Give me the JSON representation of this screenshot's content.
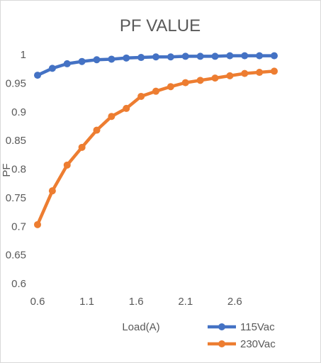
{
  "chart_data": {
    "type": "line",
    "title": "PF VALUE",
    "xlabel": "Load(A)",
    "ylabel": "PF",
    "x": [
      0.6,
      0.75,
      0.9,
      1.05,
      1.2,
      1.35,
      1.5,
      1.65,
      1.8,
      1.95,
      2.1,
      2.25,
      2.4,
      2.55,
      2.7,
      2.85,
      3.0
    ],
    "x_ticks": [
      "0.6",
      "1.1",
      "1.6",
      "2.1",
      "2.6"
    ],
    "y_ticks": [
      "0.6",
      "0.65",
      "0.7",
      "0.75",
      "0.8",
      "0.85",
      "0.9",
      "0.95",
      "1"
    ],
    "ylim": [
      0.6,
      1.0
    ],
    "grid": false,
    "legend_position": "bottom-right",
    "series": [
      {
        "name": "115Vac",
        "color": "#4472C4",
        "values": [
          0.964,
          0.976,
          0.984,
          0.988,
          0.991,
          0.992,
          0.994,
          0.995,
          0.996,
          0.996,
          0.997,
          0.997,
          0.997,
          0.998,
          0.998,
          0.998,
          0.998
        ]
      },
      {
        "name": "230Vac",
        "color": "#ED7D31",
        "values": [
          0.703,
          0.762,
          0.807,
          0.838,
          0.868,
          0.892,
          0.906,
          0.927,
          0.936,
          0.944,
          0.951,
          0.955,
          0.959,
          0.963,
          0.967,
          0.969,
          0.971
        ]
      }
    ]
  }
}
